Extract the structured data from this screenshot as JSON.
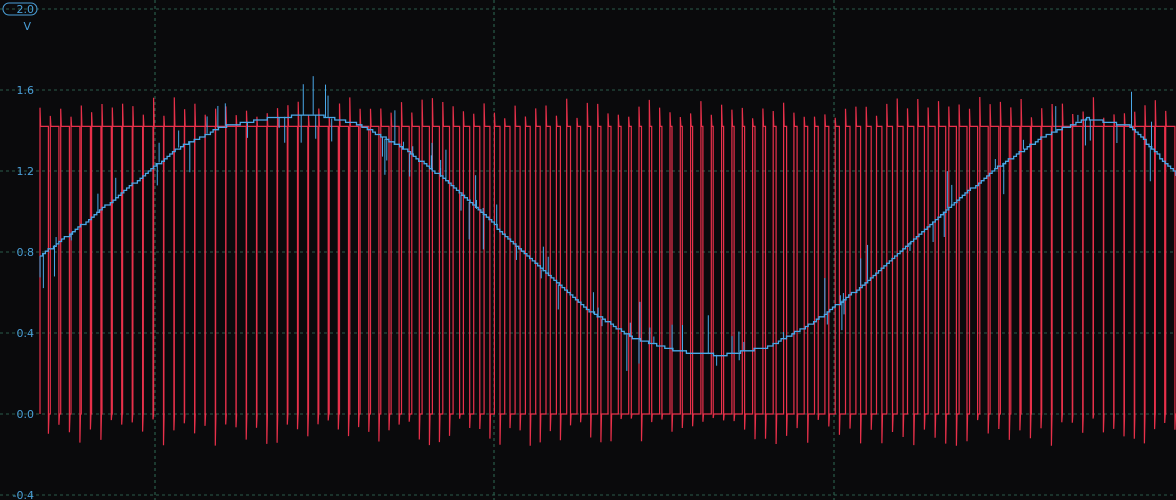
{
  "chart_data": {
    "type": "line",
    "ylim": [
      -0.4,
      2.0
    ],
    "y_ticks": [
      "1.6",
      "1.2",
      "0.8",
      "0.4",
      "0.0",
      "-0.4"
    ],
    "scale": {
      "value": "2.0",
      "unit": "V"
    },
    "grid": true,
    "series": [
      {
        "color": "#e8304a",
        "style": "pwm-digital",
        "high": 1.42,
        "low": 0.0,
        "x": [
          0,
          2,
          4,
          6,
          8,
          10,
          12,
          14,
          16,
          18,
          20,
          22,
          24,
          26,
          28,
          30,
          32,
          34,
          36,
          38,
          40,
          42,
          44,
          46,
          48,
          50
        ],
        "duty": [
          0.8,
          0.88,
          0.93,
          0.97,
          0.98,
          0.96,
          0.92,
          0.85,
          0.76,
          0.65,
          0.55,
          0.44,
          0.34,
          0.26,
          0.2,
          0.19,
          0.25,
          0.34,
          0.45,
          0.58,
          0.72,
          0.84,
          0.93,
          0.97,
          0.96,
          0.88
        ]
      },
      {
        "color": "#4aa8e8",
        "style": "stepped",
        "x": [
          0,
          2,
          4,
          6,
          8,
          10,
          12,
          14,
          16,
          18,
          20,
          22,
          24,
          26,
          28,
          30,
          32,
          34,
          36,
          38,
          40,
          42,
          44,
          46,
          48,
          50
        ],
        "values": [
          0.78,
          0.95,
          1.13,
          1.31,
          1.42,
          1.46,
          1.48,
          1.43,
          1.31,
          1.14,
          0.93,
          0.72,
          0.52,
          0.38,
          0.31,
          0.29,
          0.33,
          0.45,
          0.62,
          0.82,
          1.02,
          1.21,
          1.36,
          1.46,
          1.42,
          1.18
        ]
      }
    ]
  }
}
